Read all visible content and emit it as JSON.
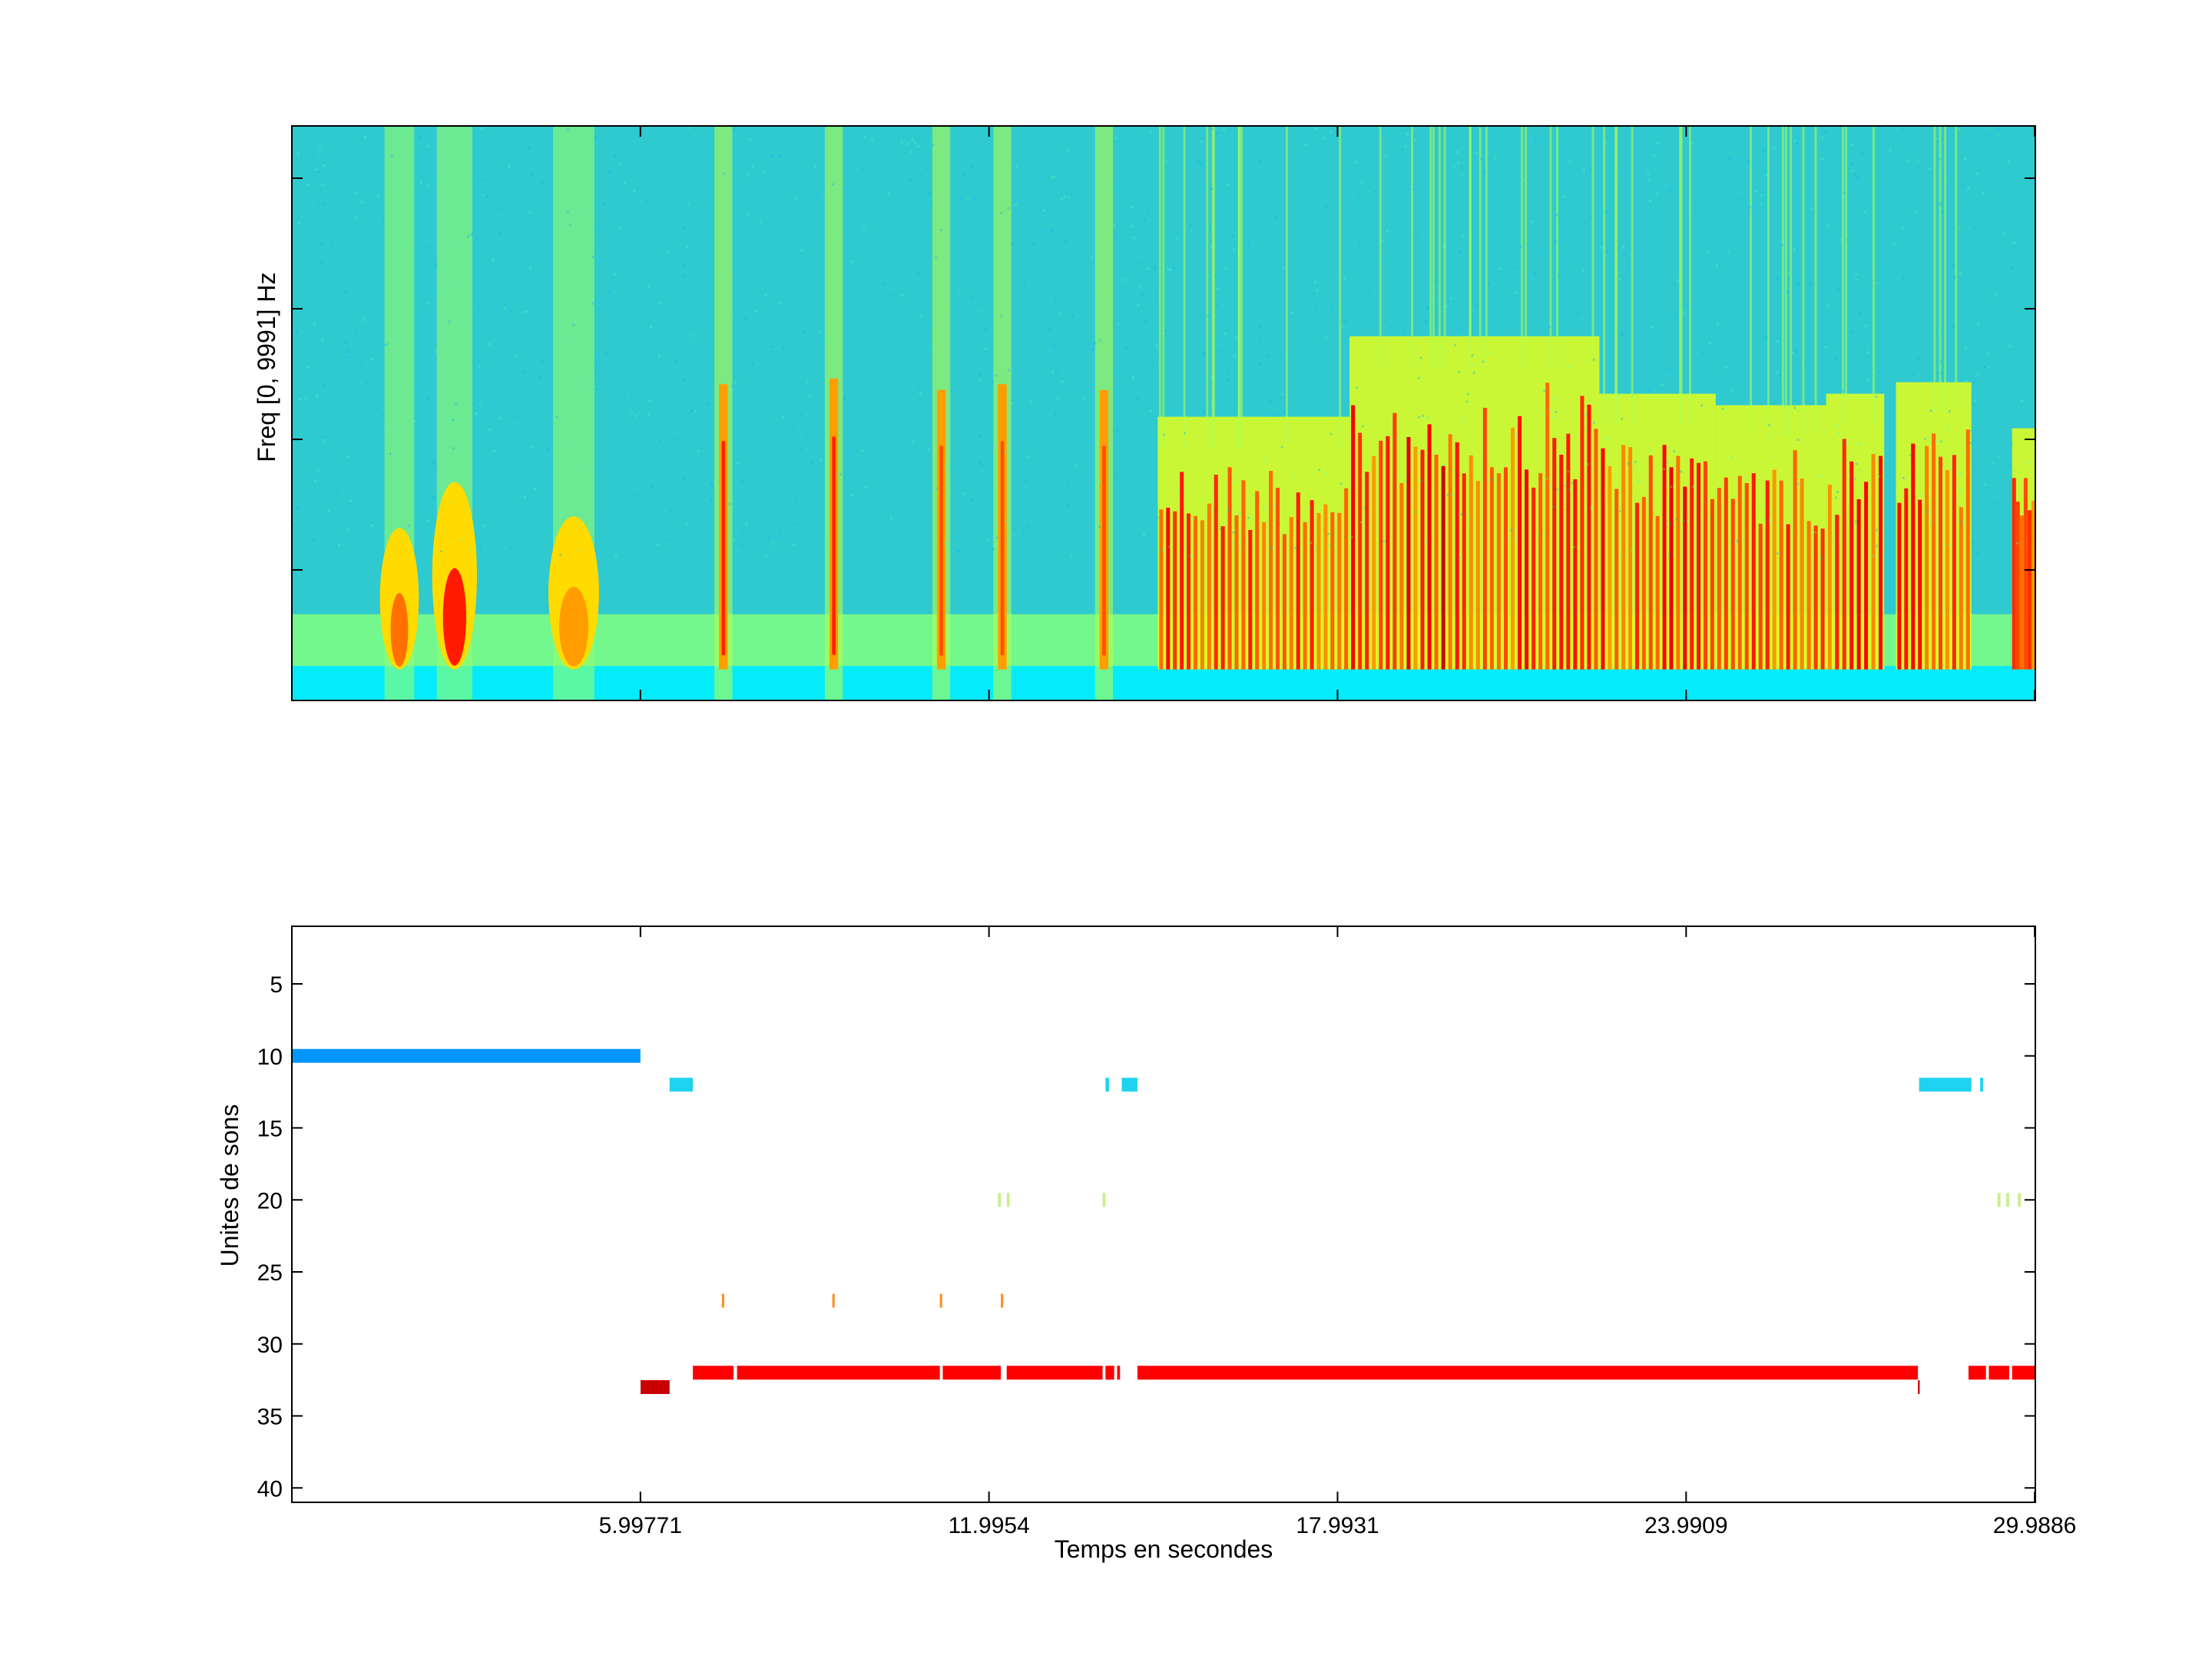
{
  "figure": {
    "background": "#ffffff"
  },
  "chart_data": [
    {
      "type": "heatmap",
      "title": "",
      "xlabel": "",
      "ylabel": "Freq [0, 9991] Hz",
      "xlim": [
        0,
        30.0
      ],
      "ylim": [
        0,
        9991
      ],
      "x_tick_values": [
        5.99771,
        11.9954,
        17.9931,
        23.9909,
        29.9886
      ],
      "y_tick_count": 4,
      "colormap": "jet",
      "colormap_colors": [
        "#00008f",
        "#0000ff",
        "#00ffff",
        "#ffff00",
        "#ff0000",
        "#800000"
      ],
      "background_color": "#2fc9d0",
      "low_freq_band_hz": [
        600,
        1500
      ],
      "events": [
        {
          "t0": 1.7,
          "t1": 2.0,
          "f_top": 3000,
          "intensity": 0.9,
          "type": "vocal"
        },
        {
          "t0": 2.6,
          "t1": 3.0,
          "f_top": 3800,
          "intensity": 1.0,
          "type": "vocal"
        },
        {
          "t0": 4.6,
          "t1": 5.1,
          "f_top": 3200,
          "intensity": 0.85,
          "type": "vocal"
        },
        {
          "t0": 7.35,
          "t1": 7.5,
          "f_top": 5500,
          "intensity": 0.9,
          "type": "click"
        },
        {
          "t0": 9.25,
          "t1": 9.4,
          "f_top": 5600,
          "intensity": 0.9,
          "type": "click"
        },
        {
          "t0": 11.1,
          "t1": 11.25,
          "f_top": 5400,
          "intensity": 0.85,
          "type": "click"
        },
        {
          "t0": 12.15,
          "t1": 12.3,
          "f_top": 5500,
          "intensity": 0.85,
          "type": "click"
        },
        {
          "t0": 13.9,
          "t1": 14.05,
          "f_top": 5400,
          "intensity": 0.85,
          "type": "click"
        },
        {
          "t0": 14.9,
          "t1": 18.2,
          "f_top": 4400,
          "intensity": 0.75,
          "type": "pulse_train"
        },
        {
          "t0": 18.2,
          "t1": 22.5,
          "f_top": 5800,
          "intensity": 1.0,
          "type": "dense"
        },
        {
          "t0": 22.5,
          "t1": 24.5,
          "f_top": 4800,
          "intensity": 0.85,
          "type": "pulse_train"
        },
        {
          "t0": 24.5,
          "t1": 26.4,
          "f_top": 4600,
          "intensity": 0.7,
          "type": "pulse_train"
        },
        {
          "t0": 26.4,
          "t1": 27.4,
          "f_top": 4800,
          "intensity": 0.85,
          "type": "pulse_train"
        },
        {
          "t0": 27.6,
          "t1": 28.9,
          "f_top": 5000,
          "intensity": 0.95,
          "type": "pulse_train"
        },
        {
          "t0": 29.6,
          "t1": 30.0,
          "f_top": 4200,
          "intensity": 0.7,
          "type": "pulse_train"
        }
      ]
    },
    {
      "type": "scatter",
      "title": "",
      "xlabel": "Temps en secondes",
      "ylabel": "Unites de sons",
      "xlim": [
        0,
        30.0
      ],
      "ylim": [
        1,
        41
      ],
      "y_reversed": true,
      "x_tick_values": [
        5.99771,
        11.9954,
        17.9931,
        23.9909,
        29.9886
      ],
      "x_tick_labels": [
        "5.99771",
        "11.9954",
        "17.9931",
        "23.9909",
        "29.9886"
      ],
      "y_tick_values": [
        5,
        10,
        15,
        20,
        25,
        30,
        35,
        40
      ],
      "y_tick_labels": [
        "5",
        "10",
        "15",
        "20",
        "25",
        "30",
        "35",
        "40"
      ],
      "series": [
        {
          "unit": 10,
          "color": "#0096ff",
          "segments": [
            [
              0,
              5.99771
            ]
          ]
        },
        {
          "unit": 12,
          "color": "#1ed2f0",
          "segments": [
            [
              6.5,
              6.9
            ],
            [
              14.0,
              14.06
            ],
            [
              14.28,
              14.55
            ],
            [
              28.0,
              28.9
            ],
            [
              29.05,
              29.1
            ]
          ]
        },
        {
          "unit": 20,
          "color": "#c6f08c",
          "segments": [
            [
              12.15,
              12.2
            ],
            [
              12.3,
              12.35
            ],
            [
              13.95,
              14.0
            ],
            [
              29.35,
              29.4
            ],
            [
              29.5,
              29.55
            ],
            [
              29.7,
              29.75
            ]
          ]
        },
        {
          "unit": 27,
          "color": "#ff8c1e",
          "segments": [
            [
              7.4,
              7.44
            ],
            [
              9.3,
              9.34
            ],
            [
              11.15,
              11.19
            ],
            [
              12.2,
              12.24
            ]
          ]
        },
        {
          "unit": 32,
          "color": "#ff0000",
          "segments": [
            [
              6.9,
              7.6
            ],
            [
              7.66,
              11.15
            ],
            [
              11.2,
              12.2
            ],
            [
              12.3,
              13.95
            ],
            [
              14.0,
              14.15
            ],
            [
              14.2,
              14.25
            ],
            [
              14.55,
              27.98
            ],
            [
              28.85,
              29.15
            ],
            [
              29.2,
              29.55
            ],
            [
              29.6,
              30.0
            ]
          ]
        },
        {
          "unit": 33,
          "color": "#c80000",
          "segments": [
            [
              6.0,
              6.5
            ],
            [
              27.98,
              28.01
            ]
          ]
        }
      ]
    }
  ]
}
